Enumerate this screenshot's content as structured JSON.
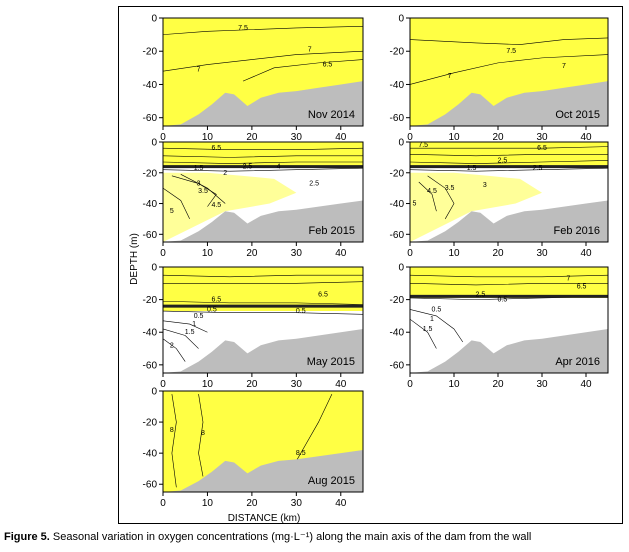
{
  "figure": {
    "caption_label": "Figure 5.",
    "caption_text": " Seasonal variation in oxygen concentrations (mg·L⁻¹) along the main axis of the dam from the wall",
    "xlabel": "DISTANCE (km)",
    "ylabel": "DEPTH (m)"
  },
  "colors": {
    "low_oxygen": "#ffffff",
    "medium_oxygen": "#ffff99",
    "high_oxygen": "#ffff44",
    "bottom": "#bdbdbd",
    "contour": "#000000"
  },
  "chart_data": [
    {
      "type": "heatmap",
      "title": "Nov 2014",
      "xlim": [
        0,
        45
      ],
      "ylim": [
        -65,
        0
      ],
      "xticks": [
        "0",
        "10",
        "20",
        "30",
        "40"
      ],
      "yticks": [
        "0",
        "-20",
        "-40",
        "-60"
      ],
      "contour_labels": [
        "7.5",
        "7",
        "6.5",
        "7"
      ]
    },
    {
      "type": "heatmap",
      "title": "Oct 2015",
      "xlim": [
        0,
        45
      ],
      "ylim": [
        -65,
        0
      ],
      "xticks": [
        "0",
        "10",
        "20",
        "30",
        "40"
      ],
      "yticks": [
        "0",
        "-20",
        "-40",
        "-60"
      ],
      "contour_labels": [
        "7.5",
        "7",
        "7"
      ]
    },
    {
      "type": "heatmap",
      "title": "Feb 2015",
      "xlim": [
        0,
        45
      ],
      "ylim": [
        -65,
        0
      ],
      "xticks": [
        "0",
        "10",
        "20",
        "30",
        "40"
      ],
      "yticks": [
        "0",
        "-20",
        "-40",
        "-60"
      ],
      "contour_labels": [
        "6.5",
        "1.5",
        "2",
        "2.5",
        "4",
        "3",
        "3.5",
        "4.5",
        "5",
        "2.5"
      ]
    },
    {
      "type": "heatmap",
      "title": "Feb 2016",
      "xlim": [
        0,
        45
      ],
      "ylim": [
        -65,
        0
      ],
      "xticks": [
        "0",
        "10",
        "20",
        "30",
        "40"
      ],
      "yticks": [
        "0",
        "-20",
        "-40",
        "-60"
      ],
      "contour_labels": [
        "7.5",
        "6.5",
        "1.5",
        "2.5",
        "2.5",
        "3",
        "3.5",
        "4.5",
        "5"
      ]
    },
    {
      "type": "heatmap",
      "title": "May 2015",
      "xlim": [
        0,
        45
      ],
      "ylim": [
        -65,
        0
      ],
      "xticks": [
        "0",
        "10",
        "20",
        "30",
        "40"
      ],
      "yticks": [
        "0",
        "-20",
        "-40",
        "-60"
      ],
      "contour_labels": [
        "6.5",
        "6.5",
        "0.5",
        "0.5",
        "0.5",
        "1",
        "1.5",
        "2"
      ]
    },
    {
      "type": "heatmap",
      "title": "Apr 2016",
      "xlim": [
        0,
        45
      ],
      "ylim": [
        -65,
        0
      ],
      "xticks": [
        "0",
        "10",
        "20",
        "30",
        "40"
      ],
      "yticks": [
        "0",
        "-20",
        "-40",
        "-60"
      ],
      "contour_labels": [
        "7",
        "6.5",
        "2.5",
        "0.5",
        "0.5",
        "1",
        "1.5"
      ]
    },
    {
      "type": "heatmap",
      "title": "Aug 2015",
      "xlim": [
        0,
        45
      ],
      "ylim": [
        -65,
        0
      ],
      "xticks": [
        "0",
        "10",
        "20",
        "30",
        "40"
      ],
      "yticks": [
        "0",
        "-20",
        "-40",
        "-60"
      ],
      "contour_labels": [
        "8",
        "8",
        "8.5"
      ]
    }
  ]
}
